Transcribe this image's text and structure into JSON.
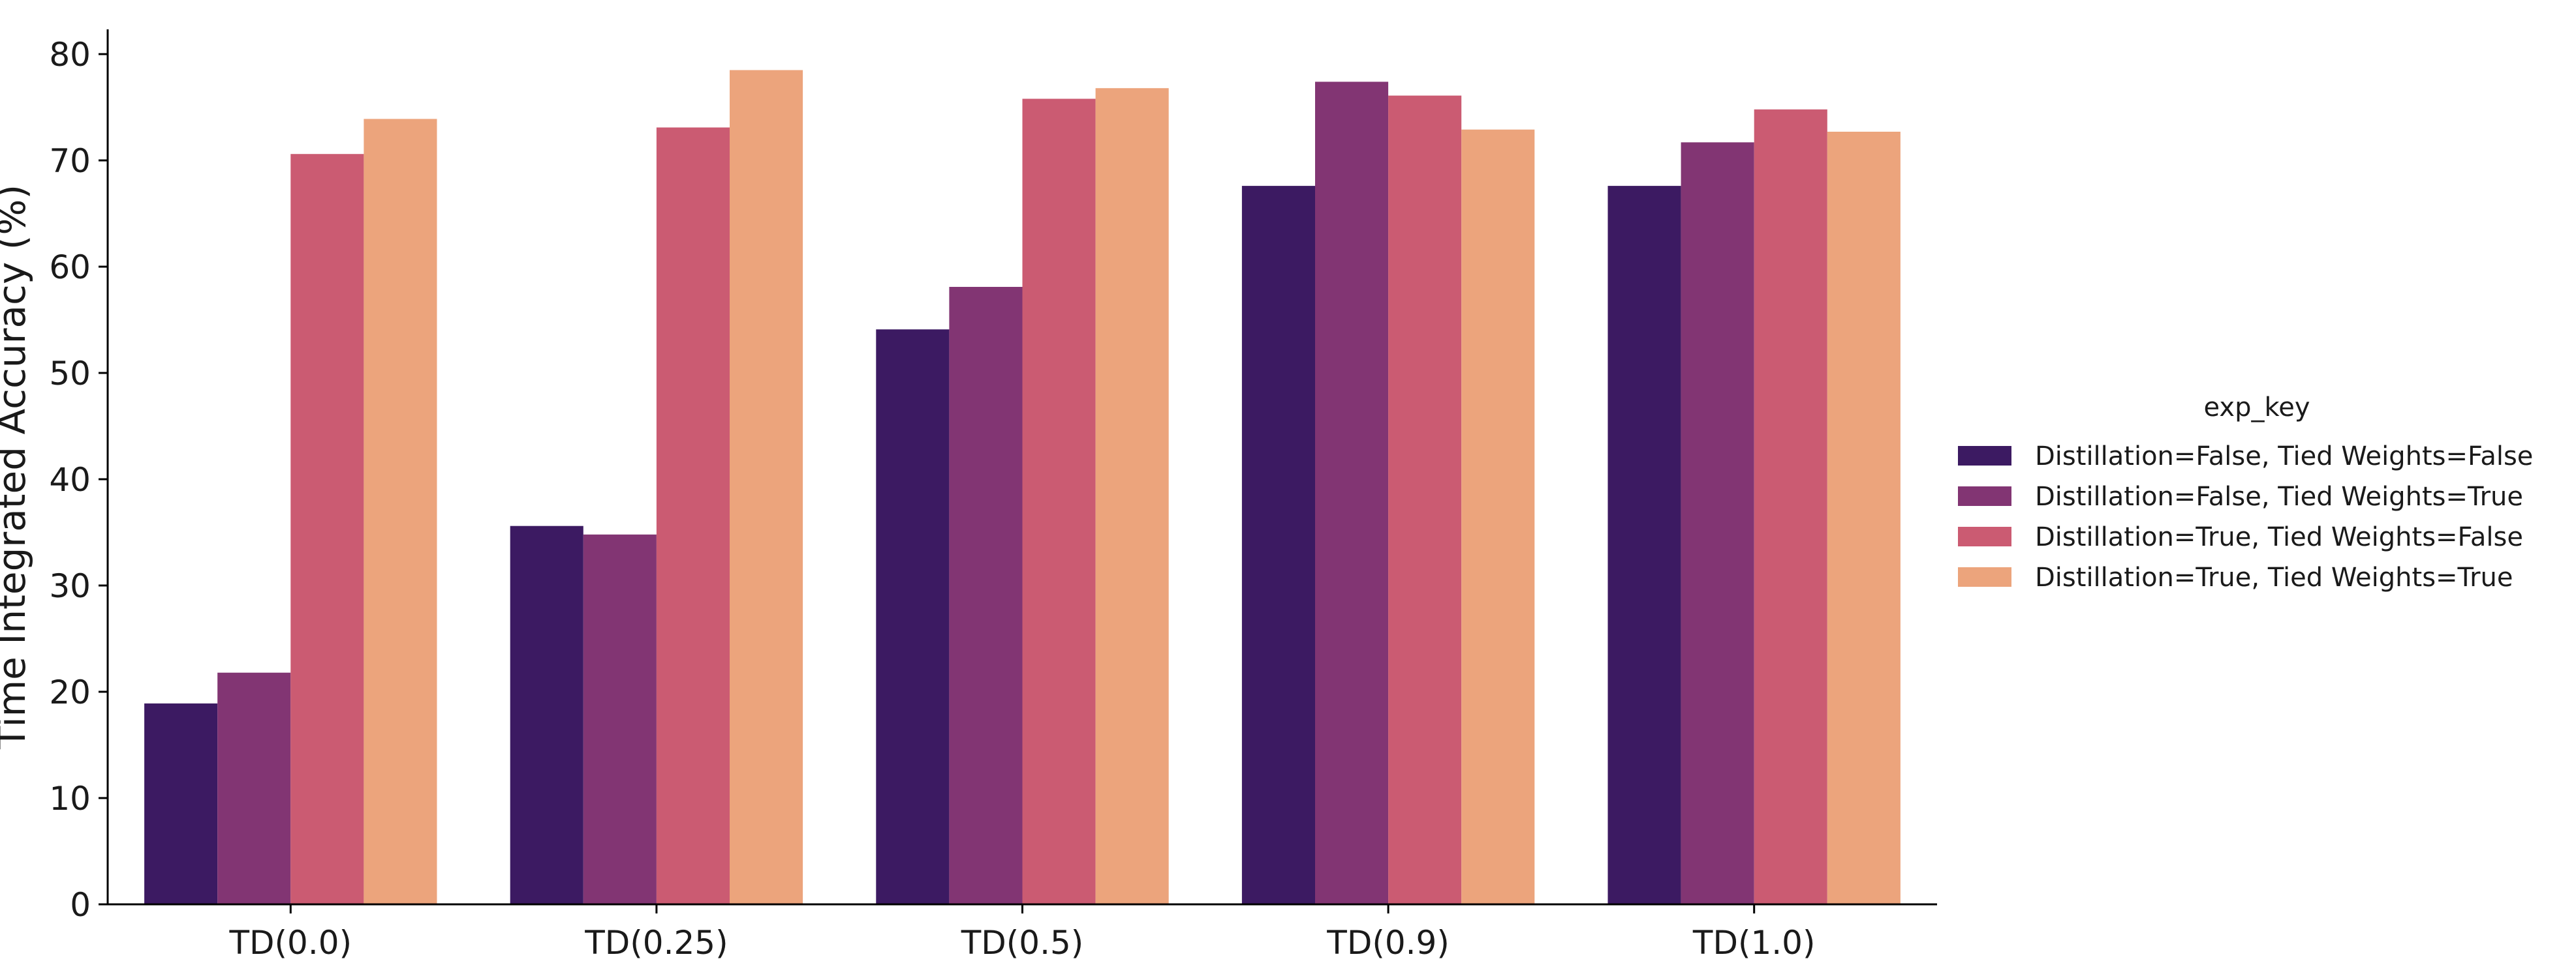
{
  "chart_data": {
    "type": "bar",
    "title": "",
    "xlabel": "",
    "ylabel": "Time Integrated Accuracy (%)",
    "ylim": [
      0,
      82
    ],
    "yticks": [
      0,
      10,
      20,
      30,
      40,
      50,
      60,
      70,
      80
    ],
    "grid": false,
    "legend_position": "right",
    "legend_title": "exp_key",
    "categories": [
      "TD(0.0)",
      "TD(0.25)",
      "TD(0.5)",
      "TD(0.9)",
      "TD(1.0)"
    ],
    "series": [
      {
        "name": "Distillation=False, Tied Weights=False",
        "color": "#3c1a62",
        "values": [
          18.9,
          35.6,
          54.1,
          67.6,
          67.6
        ]
      },
      {
        "name": "Distillation=False, Tied Weights=True",
        "color": "#823573",
        "values": [
          21.8,
          34.8,
          58.1,
          77.4,
          71.7
        ]
      },
      {
        "name": "Distillation=True, Tied Weights=False",
        "color": "#cb5b72",
        "values": [
          70.6,
          73.1,
          75.8,
          76.1,
          74.8
        ]
      },
      {
        "name": "Distillation=True, Tied Weights=True",
        "color": "#eca47c",
        "values": [
          73.9,
          78.5,
          76.8,
          72.9,
          72.7
        ]
      }
    ]
  }
}
